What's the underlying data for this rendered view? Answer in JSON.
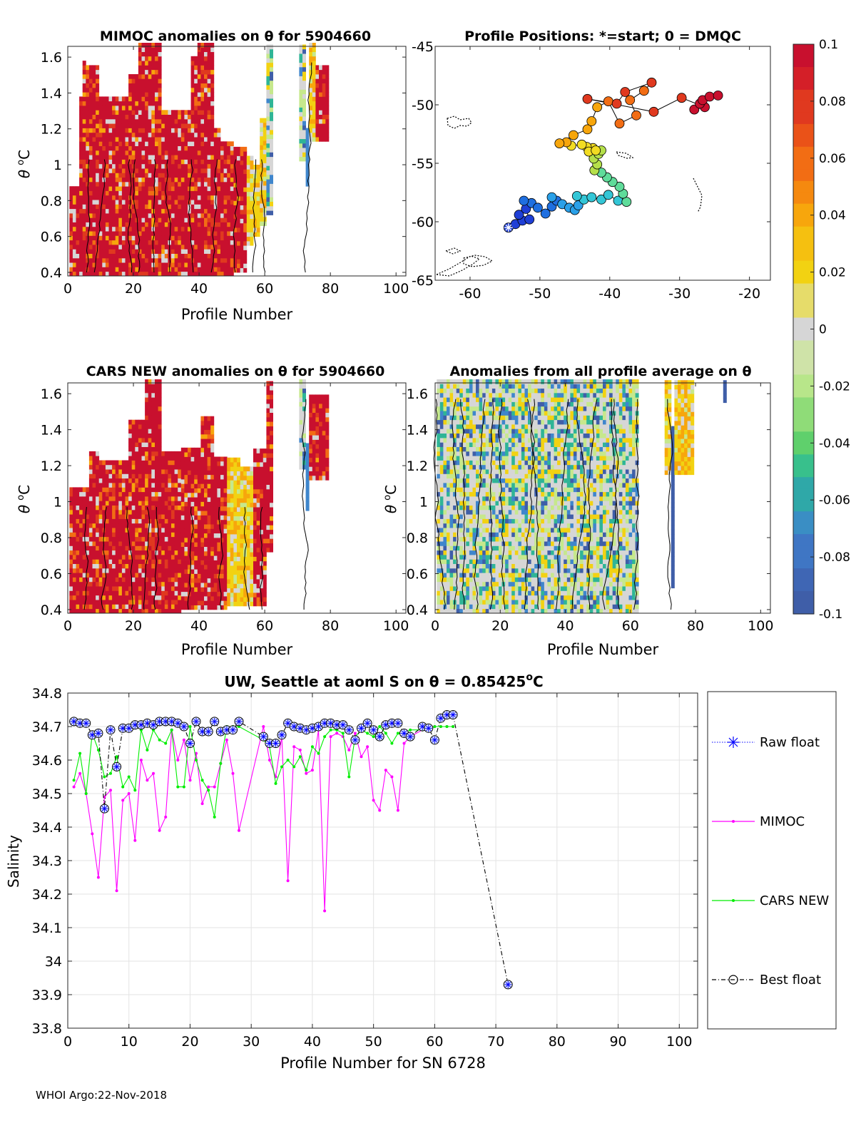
{
  "footer": "WHOI Argo:22-Nov-2018",
  "panel_titles": {
    "mimoc": "MIMOC anomalies on θ  for 5904660",
    "positions": "Profile Positions: *=start; 0 = DMQC",
    "cars": "CARS NEW anomalies on θ for 5904660",
    "avg": "Anomalies from all profile average on θ",
    "main_prefix": "UW, Seattle at aoml S on θ = 0.85425",
    "main_sup": "o",
    "main_suffix": "C"
  },
  "axis_labels": {
    "theta": "θ",
    "theta_unit_sup": "o",
    "theta_unit": "C",
    "profile_number": "Profile Number",
    "salinity": "Salinity",
    "profile_number_sn": "Profile Number for SN 6728"
  },
  "colorbar": {
    "ticks": [
      "0.1",
      "0.08",
      "0.06",
      "0.04",
      "0.02",
      "0",
      "-0.02",
      "-0.04",
      "-0.06",
      "-0.08",
      "-0.1"
    ],
    "colors": [
      "#c8102e",
      "#e0391f",
      "#f26d14",
      "#f7a60c",
      "#f2d212",
      "#d6d6d6",
      "#c6e88c",
      "#6cd06a",
      "#2fb596",
      "#3f86cc",
      "#3f5ea8"
    ]
  },
  "colors": {
    "raw_float": "#0000ff",
    "mimoc": "#ff00ff",
    "cars": "#00ee00",
    "best": "#000000"
  },
  "chart_data": [
    {
      "type": "heatmap",
      "name": "mimoc-anomaly",
      "title": "MIMOC anomalies on θ  for 5904660",
      "xlabel": "Profile Number",
      "ylabel": "θ °C",
      "xlim": [
        0,
        103
      ],
      "ylim": [
        0.38,
        1.66
      ],
      "xticks": [
        0,
        20,
        40,
        60,
        80,
        100
      ],
      "yticks": [
        0.4,
        0.6,
        0.8,
        1.0,
        1.2,
        1.4,
        1.6
      ],
      "ytick_labels": [
        "0.4",
        "0.6",
        "0.8",
        "1",
        "1.2",
        "1.4",
        "1.6"
      ]
    },
    {
      "type": "scatter",
      "name": "profile-positions",
      "title": "Profile Positions: *=start; 0 = DMQC",
      "xlim": [
        -65,
        -17
      ],
      "ylim": [
        -65,
        -45
      ],
      "xticks": [
        -60,
        -50,
        -40,
        -30,
        -20
      ],
      "yticks": [
        -45,
        -50,
        -55,
        -60,
        -65
      ],
      "points": [
        [
          -54.5,
          -60.5
        ],
        [
          -53.5,
          -60.2
        ],
        [
          -52.5,
          -59.9
        ],
        [
          -53.0,
          -59.4
        ],
        [
          -51.5,
          -59.8
        ],
        [
          -52.0,
          -58.9
        ],
        [
          -51.2,
          -58.4
        ],
        [
          -52.3,
          -58.2
        ],
        [
          -50.3,
          -58.8
        ],
        [
          -49.2,
          -59.3
        ],
        [
          -48.3,
          -58.7
        ],
        [
          -47.6,
          -58.2
        ],
        [
          -48.3,
          -57.9
        ],
        [
          -46.8,
          -58.5
        ],
        [
          -45.8,
          -58.8
        ],
        [
          -45.0,
          -59.0
        ],
        [
          -44.5,
          -58.6
        ],
        [
          -43.7,
          -58.1
        ],
        [
          -44.7,
          -57.8
        ],
        [
          -42.6,
          -57.9
        ],
        [
          -41.2,
          -58.1
        ],
        [
          -40.2,
          -57.7
        ],
        [
          -38.8,
          -58.2
        ],
        [
          -37.6,
          -58.3
        ],
        [
          -38.1,
          -57.6
        ],
        [
          -38.6,
          -57.0
        ],
        [
          -39.6,
          -56.6
        ],
        [
          -40.4,
          -56.2
        ],
        [
          -41.2,
          -55.8
        ],
        [
          -42.2,
          -55.6
        ],
        [
          -41.8,
          -55.1
        ],
        [
          -42.3,
          -54.6
        ],
        [
          -41.6,
          -54.2
        ],
        [
          -41.2,
          -53.9
        ],
        [
          -42.4,
          -53.7
        ],
        [
          -43.3,
          -53.6
        ],
        [
          -43.0,
          -54.0
        ],
        [
          -42.0,
          -53.9
        ],
        [
          -44.0,
          -53.4
        ],
        [
          -45.5,
          -53.5
        ],
        [
          -46.2,
          -53.2
        ],
        [
          -47.2,
          -53.3
        ],
        [
          -45.2,
          -52.6
        ],
        [
          -43.2,
          -52.1
        ],
        [
          -42.6,
          -51.4
        ],
        [
          -41.8,
          -50.2
        ],
        [
          -40.2,
          -49.7
        ],
        [
          -38.6,
          -51.6
        ],
        [
          -36.2,
          -50.9
        ],
        [
          -37.1,
          -49.6
        ],
        [
          -35.1,
          -48.8
        ],
        [
          -34.0,
          -48.1
        ],
        [
          -37.8,
          -48.9
        ],
        [
          -39.0,
          -49.9
        ],
        [
          -43.2,
          -49.5
        ],
        [
          -33.7,
          -50.6
        ],
        [
          -29.7,
          -49.4
        ],
        [
          -26.4,
          -50.2
        ],
        [
          -27.9,
          -50.4
        ],
        [
          -27.1,
          -49.9
        ],
        [
          -26.7,
          -49.6
        ],
        [
          -25.7,
          -49.3
        ],
        [
          -24.5,
          -49.2
        ]
      ]
    },
    {
      "type": "heatmap",
      "name": "cars-anomaly",
      "title": "CARS NEW anomalies on θ for 5904660",
      "xlabel": "Profile Number",
      "ylabel": "θ °C",
      "xlim": [
        0,
        103
      ],
      "ylim": [
        0.38,
        1.66
      ],
      "xticks": [
        0,
        20,
        40,
        60,
        80,
        100
      ],
      "yticks": [
        0.4,
        0.6,
        0.8,
        1.0,
        1.2,
        1.4,
        1.6
      ],
      "ytick_labels": [
        "0.4",
        "0.6",
        "0.8",
        "1",
        "1.2",
        "1.4",
        "1.6"
      ]
    },
    {
      "type": "heatmap",
      "name": "average-anomaly",
      "title": "Anomalies from all profile average on θ",
      "xlabel": "Profile Number",
      "ylabel": "θ °C",
      "xlim": [
        0,
        103
      ],
      "ylim": [
        0.38,
        1.66
      ],
      "xticks": [
        0,
        20,
        40,
        60,
        80,
        100
      ],
      "yticks": [
        0.4,
        0.6,
        0.8,
        1.0,
        1.2,
        1.4,
        1.6
      ],
      "ytick_labels": [
        "0.4",
        "0.6",
        "0.8",
        "1",
        "1.2",
        "1.4",
        "1.6"
      ]
    },
    {
      "type": "line",
      "name": "salinity-on-theta",
      "title": "UW, Seattle at aoml S on θ = 0.85425 °C",
      "xlabel": "Profile Number for SN 6728",
      "ylabel": "Salinity",
      "xlim": [
        0,
        103
      ],
      "ylim": [
        33.8,
        34.8
      ],
      "xticks": [
        0,
        10,
        20,
        30,
        40,
        50,
        60,
        70,
        80,
        90,
        100
      ],
      "yticks": [
        33.8,
        33.9,
        34.0,
        34.1,
        34.2,
        34.3,
        34.4,
        34.5,
        34.6,
        34.7,
        34.8
      ],
      "ytick_labels": [
        "33.8",
        "33.9",
        "34",
        "34.1",
        "34.2",
        "34.3",
        "34.4",
        "34.5",
        "34.6",
        "34.7",
        "34.8"
      ],
      "legend": [
        "Raw float",
        "MIMOC",
        "CARS NEW",
        "Best float"
      ],
      "legend_position": "outside-right",
      "series": [
        {
          "name": "Best float",
          "x": [
            1,
            2,
            3,
            4,
            5,
            6,
            7,
            8,
            9,
            10,
            11,
            12,
            13,
            14,
            15,
            16,
            17,
            18,
            19,
            20,
            21,
            22,
            23,
            24,
            25,
            26,
            27,
            28,
            32,
            33,
            34,
            35,
            36,
            37,
            38,
            39,
            40,
            41,
            42,
            43,
            44,
            45,
            46,
            47,
            48,
            49,
            50,
            51,
            52,
            53,
            54,
            55,
            56,
            58,
            59,
            60,
            61,
            62,
            63,
            72
          ],
          "y": [
            34.715,
            34.71,
            34.71,
            34.675,
            34.68,
            34.455,
            34.69,
            34.58,
            34.695,
            34.695,
            34.705,
            34.705,
            34.71,
            34.705,
            34.715,
            34.715,
            34.715,
            34.71,
            34.7,
            34.65,
            34.715,
            34.685,
            34.685,
            34.715,
            34.685,
            34.69,
            34.69,
            34.715,
            34.67,
            34.65,
            34.65,
            34.675,
            34.71,
            34.7,
            34.695,
            34.69,
            34.695,
            34.7,
            34.71,
            34.71,
            34.705,
            34.705,
            34.69,
            34.66,
            34.695,
            34.71,
            34.69,
            34.67,
            34.705,
            34.71,
            34.71,
            34.68,
            34.67,
            34.7,
            34.695,
            34.66,
            34.725,
            34.735,
            34.735,
            33.93
          ]
        },
        {
          "name": "MIMOC",
          "x": [
            1,
            2,
            3,
            4,
            5,
            6,
            7,
            8,
            9,
            10,
            11,
            12,
            13,
            14,
            15,
            16,
            17,
            18,
            19,
            20,
            21,
            22,
            23,
            24,
            25,
            26,
            27,
            28,
            32,
            33,
            34,
            35,
            36,
            37,
            38,
            39,
            40,
            41,
            42,
            43,
            44,
            45,
            46,
            47,
            48,
            49,
            50,
            51,
            52,
            53,
            54,
            55,
            56,
            58,
            59,
            60,
            61,
            62,
            63
          ],
          "y": [
            34.52,
            34.56,
            34.5,
            34.38,
            34.25,
            34.49,
            34.51,
            34.21,
            34.48,
            34.5,
            34.36,
            34.6,
            34.54,
            34.56,
            34.39,
            34.43,
            34.69,
            34.6,
            34.66,
            34.54,
            34.62,
            34.47,
            34.52,
            34.52,
            34.59,
            34.66,
            34.56,
            34.39,
            34.7,
            34.6,
            34.55,
            34.67,
            34.24,
            34.64,
            34.63,
            34.56,
            34.57,
            34.69,
            34.15,
            34.67,
            34.68,
            34.67,
            34.63,
            34.68,
            34.61,
            34.64,
            34.48,
            34.45,
            34.57,
            34.55,
            34.45,
            34.65,
            34.67,
            34.69,
            34.7,
            34.7,
            34.7,
            34.7,
            34.7
          ]
        },
        {
          "name": "CARS NEW",
          "x": [
            1,
            2,
            3,
            4,
            5,
            6,
            7,
            8,
            9,
            10,
            11,
            12,
            13,
            14,
            15,
            16,
            17,
            18,
            19,
            20,
            21,
            22,
            23,
            24,
            25,
            26,
            27,
            28,
            32,
            33,
            34,
            35,
            36,
            37,
            38,
            39,
            40,
            41,
            42,
            43,
            44,
            45,
            46,
            47,
            48,
            49,
            50,
            51,
            52,
            53,
            54,
            55,
            56,
            58,
            59,
            60,
            61,
            62,
            63
          ],
          "y": [
            34.54,
            34.62,
            34.5,
            34.68,
            34.63,
            34.55,
            34.56,
            34.61,
            34.52,
            34.55,
            34.51,
            34.69,
            34.63,
            34.69,
            34.66,
            34.65,
            34.69,
            34.52,
            34.52,
            34.7,
            34.6,
            34.54,
            34.51,
            34.43,
            34.59,
            34.7,
            34.7,
            34.7,
            34.66,
            34.64,
            34.53,
            34.58,
            34.6,
            34.58,
            34.61,
            34.57,
            34.64,
            34.62,
            34.67,
            34.69,
            34.69,
            34.68,
            34.55,
            34.67,
            34.69,
            34.68,
            34.67,
            34.7,
            34.68,
            34.65,
            34.68,
            34.68,
            34.69,
            34.69,
            34.69,
            34.7,
            34.7,
            34.7,
            34.7
          ]
        }
      ]
    }
  ]
}
